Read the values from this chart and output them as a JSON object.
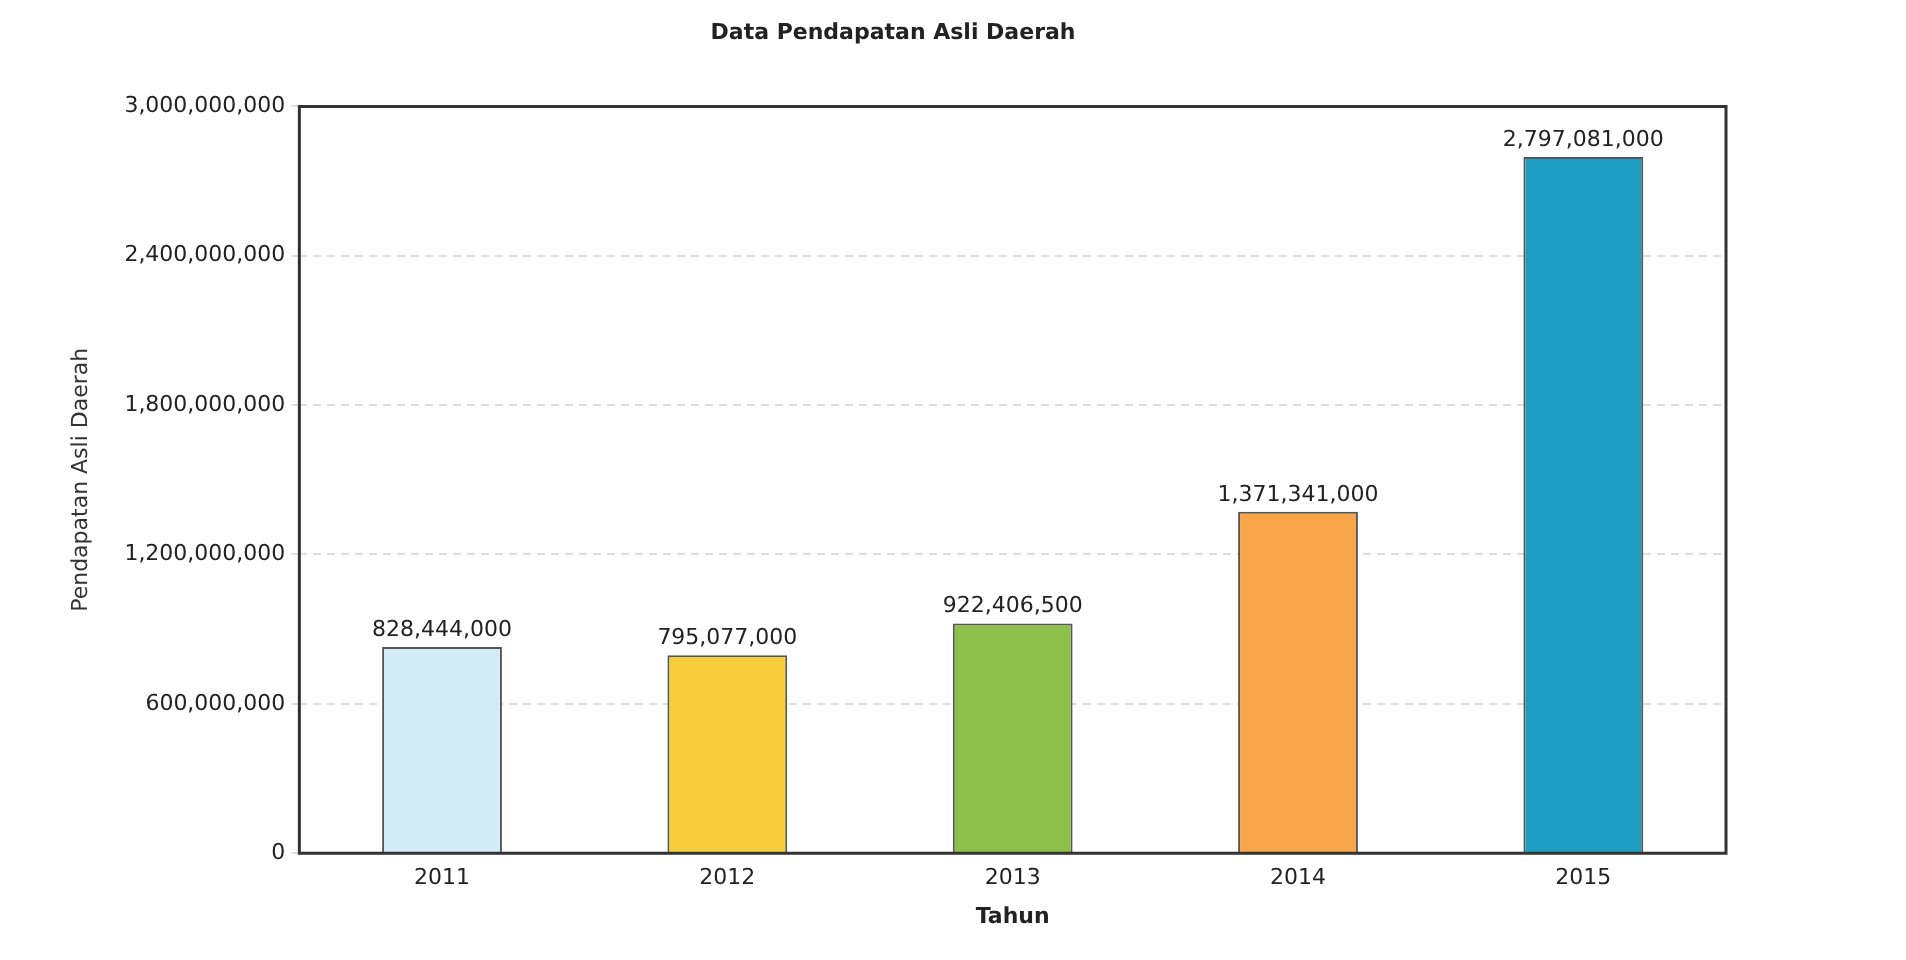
{
  "chart_data": {
    "type": "bar",
    "title": "Data Pendapatan Asli Daerah",
    "xlabel": "Tahun",
    "ylabel": "Pendapatan Asli Daerah",
    "categories": [
      "2011",
      "2012",
      "2013",
      "2014",
      "2015"
    ],
    "values": [
      828444000,
      795077000,
      922406500,
      1371341000,
      2797081000
    ],
    "colors": [
      "#d4ecf8",
      "#f6cd3a",
      "#8cc04a",
      "#f9a64a",
      "#1f9fc4"
    ],
    "value_labels": [
      "828,444,000",
      "795,077,000",
      "922,406,500",
      "1,371,341,000",
      "2,797,081,000"
    ],
    "ylim": [
      0,
      3000000000
    ],
    "yticks": [
      {
        "value": 0,
        "label": "0"
      },
      {
        "value": 600000000,
        "label": "600,000,000"
      },
      {
        "value": 1200000000,
        "label": "1,200,000,000"
      },
      {
        "value": 1800000000,
        "label": "1,800,000,000"
      },
      {
        "value": 2400000000,
        "label": "2,400,000,000"
      },
      {
        "value": 3000000000,
        "label": "3,000,000,000"
      }
    ],
    "grid": "y",
    "legend": false
  }
}
